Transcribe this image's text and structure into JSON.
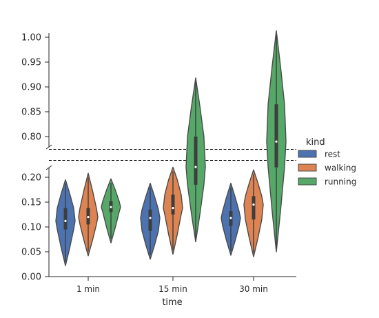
{
  "chart_data": {
    "type": "violin",
    "xlabel": "time",
    "ylabel": "",
    "categories": [
      "1 min",
      "15 min",
      "30 min"
    ],
    "ylim_upper": [
      0.77,
      1.0
    ],
    "ylim_lower": [
      0.0,
      0.22
    ],
    "yticks_upper": [
      "0.80",
      "0.85",
      "0.90",
      "0.95",
      "1.00"
    ],
    "yticks_lower": [
      "0.00",
      "0.05",
      "0.10",
      "0.15",
      "0.20"
    ],
    "axis_break": true,
    "legend": {
      "title": "kind",
      "placement": "right"
    },
    "series": [
      {
        "name": "rest",
        "color": "#4c72b0",
        "violins": [
          {
            "min": 0.022,
            "q1": 0.095,
            "median": 0.112,
            "q3": 0.138,
            "max": 0.195
          },
          {
            "min": 0.035,
            "q1": 0.092,
            "median": 0.118,
            "q3": 0.135,
            "max": 0.188
          },
          {
            "min": 0.043,
            "q1": 0.102,
            "median": 0.118,
            "q3": 0.132,
            "max": 0.188
          }
        ]
      },
      {
        "name": "walking",
        "color": "#dd8452",
        "violins": [
          {
            "min": 0.042,
            "q1": 0.105,
            "median": 0.12,
            "q3": 0.138,
            "max": 0.208
          },
          {
            "min": 0.045,
            "q1": 0.125,
            "median": 0.138,
            "q3": 0.165,
            "max": 0.225
          },
          {
            "min": 0.04,
            "q1": 0.115,
            "median": 0.145,
            "q3": 0.162,
            "max": 0.215
          }
        ]
      },
      {
        "name": "running",
        "color": "#55a868",
        "violins": [
          {
            "min": 0.068,
            "q1": 0.13,
            "median": 0.14,
            "q3": 0.152,
            "max": 0.197
          },
          {
            "min": 0.07,
            "q1": 0.185,
            "median": 0.232,
            "q3": 0.8,
            "max": 0.918
          },
          {
            "min": 0.05,
            "q1": 0.22,
            "median": 0.79,
            "q3": 0.865,
            "max": 1.013
          }
        ]
      }
    ]
  }
}
